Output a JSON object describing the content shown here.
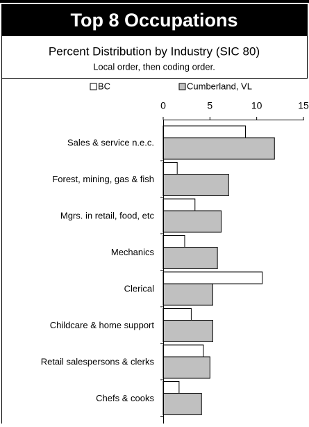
{
  "chart_data": {
    "type": "bar",
    "orientation": "horizontal",
    "title": "Top 8 Occupations",
    "subtitle": "Percent Distribution by Industry (SIC 80)",
    "note": "Local order, then coding order.",
    "categories": [
      "Sales & service  n.e.c.",
      "Forest, mining, gas & fish",
      "Mgrs. in retail, food, etc",
      "Mechanics",
      "Clerical",
      "Childcare & home support",
      "Retail salespersons & clerks",
      "Chefs & cooks"
    ],
    "series": [
      {
        "name": "BC",
        "color": "#ffffff",
        "values": [
          8.8,
          1.5,
          3.4,
          2.3,
          10.6,
          3.0,
          4.3,
          1.7
        ]
      },
      {
        "name": "Cumberland, VL",
        "color": "#c0c0c0",
        "values": [
          11.9,
          7.0,
          6.2,
          5.8,
          5.3,
          5.3,
          5.0,
          4.1
        ]
      }
    ],
    "xlim": [
      0,
      15
    ],
    "xticks": [
      0,
      5,
      10,
      15
    ]
  }
}
